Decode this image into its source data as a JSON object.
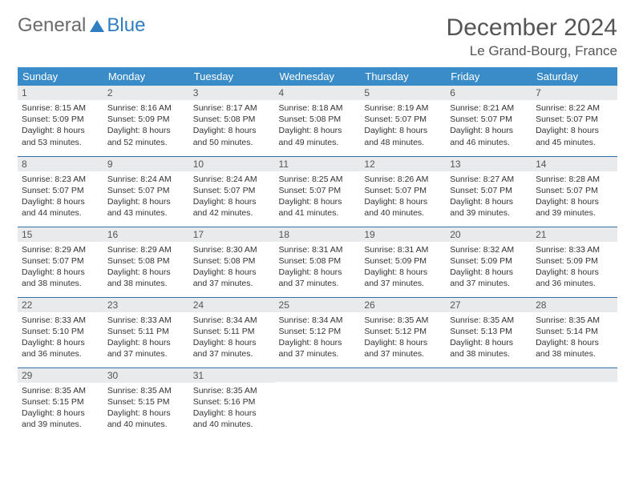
{
  "logo": {
    "general": "General",
    "blue": "Blue"
  },
  "title": "December 2024",
  "location": "Le Grand-Bourg, France",
  "colors": {
    "header_bg": "#3a8cc9",
    "header_text": "#ffffff",
    "daynum_bg": "#e9eaeb",
    "row_border": "#2f6ea8",
    "logo_general": "#6a6a6a",
    "logo_blue": "#2f7ec2",
    "body_text": "#333333",
    "title_text": "#555555",
    "page_bg": "#ffffff"
  },
  "weekdays": [
    "Sunday",
    "Monday",
    "Tuesday",
    "Wednesday",
    "Thursday",
    "Friday",
    "Saturday"
  ],
  "weeks": [
    [
      {
        "n": "1",
        "sr": "Sunrise: 8:15 AM",
        "ss": "Sunset: 5:09 PM",
        "d1": "Daylight: 8 hours",
        "d2": "and 53 minutes."
      },
      {
        "n": "2",
        "sr": "Sunrise: 8:16 AM",
        "ss": "Sunset: 5:09 PM",
        "d1": "Daylight: 8 hours",
        "d2": "and 52 minutes."
      },
      {
        "n": "3",
        "sr": "Sunrise: 8:17 AM",
        "ss": "Sunset: 5:08 PM",
        "d1": "Daylight: 8 hours",
        "d2": "and 50 minutes."
      },
      {
        "n": "4",
        "sr": "Sunrise: 8:18 AM",
        "ss": "Sunset: 5:08 PM",
        "d1": "Daylight: 8 hours",
        "d2": "and 49 minutes."
      },
      {
        "n": "5",
        "sr": "Sunrise: 8:19 AM",
        "ss": "Sunset: 5:07 PM",
        "d1": "Daylight: 8 hours",
        "d2": "and 48 minutes."
      },
      {
        "n": "6",
        "sr": "Sunrise: 8:21 AM",
        "ss": "Sunset: 5:07 PM",
        "d1": "Daylight: 8 hours",
        "d2": "and 46 minutes."
      },
      {
        "n": "7",
        "sr": "Sunrise: 8:22 AM",
        "ss": "Sunset: 5:07 PM",
        "d1": "Daylight: 8 hours",
        "d2": "and 45 minutes."
      }
    ],
    [
      {
        "n": "8",
        "sr": "Sunrise: 8:23 AM",
        "ss": "Sunset: 5:07 PM",
        "d1": "Daylight: 8 hours",
        "d2": "and 44 minutes."
      },
      {
        "n": "9",
        "sr": "Sunrise: 8:24 AM",
        "ss": "Sunset: 5:07 PM",
        "d1": "Daylight: 8 hours",
        "d2": "and 43 minutes."
      },
      {
        "n": "10",
        "sr": "Sunrise: 8:24 AM",
        "ss": "Sunset: 5:07 PM",
        "d1": "Daylight: 8 hours",
        "d2": "and 42 minutes."
      },
      {
        "n": "11",
        "sr": "Sunrise: 8:25 AM",
        "ss": "Sunset: 5:07 PM",
        "d1": "Daylight: 8 hours",
        "d2": "and 41 minutes."
      },
      {
        "n": "12",
        "sr": "Sunrise: 8:26 AM",
        "ss": "Sunset: 5:07 PM",
        "d1": "Daylight: 8 hours",
        "d2": "and 40 minutes."
      },
      {
        "n": "13",
        "sr": "Sunrise: 8:27 AM",
        "ss": "Sunset: 5:07 PM",
        "d1": "Daylight: 8 hours",
        "d2": "and 39 minutes."
      },
      {
        "n": "14",
        "sr": "Sunrise: 8:28 AM",
        "ss": "Sunset: 5:07 PM",
        "d1": "Daylight: 8 hours",
        "d2": "and 39 minutes."
      }
    ],
    [
      {
        "n": "15",
        "sr": "Sunrise: 8:29 AM",
        "ss": "Sunset: 5:07 PM",
        "d1": "Daylight: 8 hours",
        "d2": "and 38 minutes."
      },
      {
        "n": "16",
        "sr": "Sunrise: 8:29 AM",
        "ss": "Sunset: 5:08 PM",
        "d1": "Daylight: 8 hours",
        "d2": "and 38 minutes."
      },
      {
        "n": "17",
        "sr": "Sunrise: 8:30 AM",
        "ss": "Sunset: 5:08 PM",
        "d1": "Daylight: 8 hours",
        "d2": "and 37 minutes."
      },
      {
        "n": "18",
        "sr": "Sunrise: 8:31 AM",
        "ss": "Sunset: 5:08 PM",
        "d1": "Daylight: 8 hours",
        "d2": "and 37 minutes."
      },
      {
        "n": "19",
        "sr": "Sunrise: 8:31 AM",
        "ss": "Sunset: 5:09 PM",
        "d1": "Daylight: 8 hours",
        "d2": "and 37 minutes."
      },
      {
        "n": "20",
        "sr": "Sunrise: 8:32 AM",
        "ss": "Sunset: 5:09 PM",
        "d1": "Daylight: 8 hours",
        "d2": "and 37 minutes."
      },
      {
        "n": "21",
        "sr": "Sunrise: 8:33 AM",
        "ss": "Sunset: 5:09 PM",
        "d1": "Daylight: 8 hours",
        "d2": "and 36 minutes."
      }
    ],
    [
      {
        "n": "22",
        "sr": "Sunrise: 8:33 AM",
        "ss": "Sunset: 5:10 PM",
        "d1": "Daylight: 8 hours",
        "d2": "and 36 minutes."
      },
      {
        "n": "23",
        "sr": "Sunrise: 8:33 AM",
        "ss": "Sunset: 5:11 PM",
        "d1": "Daylight: 8 hours",
        "d2": "and 37 minutes."
      },
      {
        "n": "24",
        "sr": "Sunrise: 8:34 AM",
        "ss": "Sunset: 5:11 PM",
        "d1": "Daylight: 8 hours",
        "d2": "and 37 minutes."
      },
      {
        "n": "25",
        "sr": "Sunrise: 8:34 AM",
        "ss": "Sunset: 5:12 PM",
        "d1": "Daylight: 8 hours",
        "d2": "and 37 minutes."
      },
      {
        "n": "26",
        "sr": "Sunrise: 8:35 AM",
        "ss": "Sunset: 5:12 PM",
        "d1": "Daylight: 8 hours",
        "d2": "and 37 minutes."
      },
      {
        "n": "27",
        "sr": "Sunrise: 8:35 AM",
        "ss": "Sunset: 5:13 PM",
        "d1": "Daylight: 8 hours",
        "d2": "and 38 minutes."
      },
      {
        "n": "28",
        "sr": "Sunrise: 8:35 AM",
        "ss": "Sunset: 5:14 PM",
        "d1": "Daylight: 8 hours",
        "d2": "and 38 minutes."
      }
    ],
    [
      {
        "n": "29",
        "sr": "Sunrise: 8:35 AM",
        "ss": "Sunset: 5:15 PM",
        "d1": "Daylight: 8 hours",
        "d2": "and 39 minutes."
      },
      {
        "n": "30",
        "sr": "Sunrise: 8:35 AM",
        "ss": "Sunset: 5:15 PM",
        "d1": "Daylight: 8 hours",
        "d2": "and 40 minutes."
      },
      {
        "n": "31",
        "sr": "Sunrise: 8:35 AM",
        "ss": "Sunset: 5:16 PM",
        "d1": "Daylight: 8 hours",
        "d2": "and 40 minutes."
      },
      null,
      null,
      null,
      null
    ]
  ]
}
